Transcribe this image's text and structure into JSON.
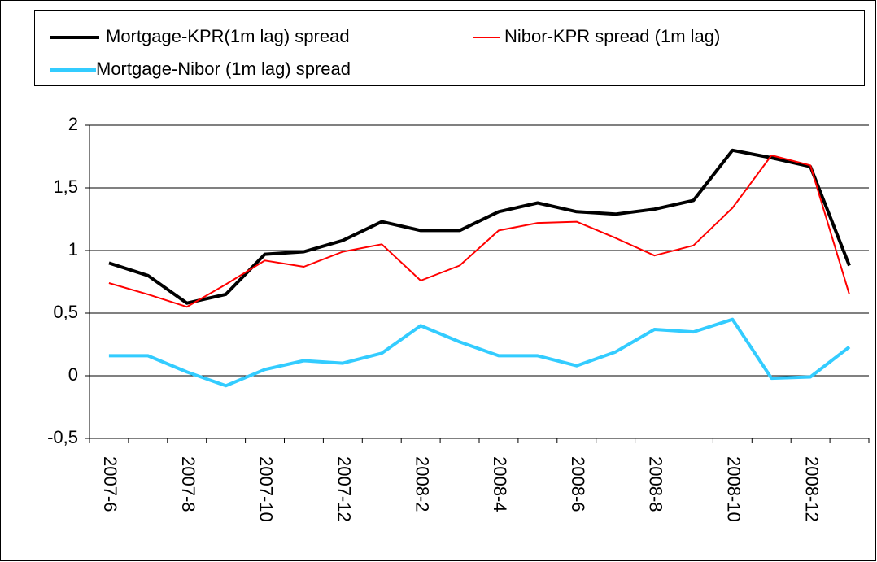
{
  "chart_data": {
    "type": "line",
    "categories": [
      "2007-6",
      null,
      "2007-8",
      null,
      "2007-10",
      null,
      "2007-12",
      null,
      "2008-2",
      null,
      "2008-4",
      null,
      "2008-6",
      null,
      "2008-8",
      null,
      "2008-10",
      null,
      "2008-12",
      null
    ],
    "series": [
      {
        "name": "Mortgage-KPR(1m lag) spread",
        "color": "#000000",
        "width": 4,
        "values": [
          0.9,
          0.8,
          0.58,
          0.65,
          0.97,
          0.99,
          1.08,
          1.23,
          1.16,
          1.16,
          1.31,
          1.38,
          1.31,
          1.29,
          1.33,
          1.4,
          1.8,
          1.74,
          1.67,
          0.88
        ]
      },
      {
        "name": "Nibor-KPR spread (1m lag)",
        "color": "#ff0000",
        "width": 2,
        "values": [
          0.74,
          0.65,
          0.55,
          0.73,
          0.92,
          0.87,
          0.99,
          1.05,
          0.76,
          0.88,
          1.16,
          1.22,
          1.23,
          1.1,
          0.96,
          1.04,
          1.34,
          1.76,
          1.68,
          0.65
        ]
      },
      {
        "name": "Mortgage-Nibor (1m lag) spread",
        "color": "#33ccff",
        "width": 4,
        "values": [
          0.16,
          0.16,
          0.03,
          -0.08,
          0.05,
          0.12,
          0.1,
          0.18,
          0.4,
          0.27,
          0.16,
          0.16,
          0.08,
          0.19,
          0.37,
          0.35,
          0.45,
          -0.02,
          -0.01,
          0.23
        ]
      }
    ],
    "ylim": [
      -0.5,
      2
    ],
    "yticks": [
      {
        "value": -0.5,
        "label": "-0,5"
      },
      0,
      {
        "value": 0.5,
        "label": "0,5"
      },
      1,
      {
        "value": 1.5,
        "label": "1,5"
      },
      2
    ],
    "grid": true,
    "legend": "top"
  }
}
